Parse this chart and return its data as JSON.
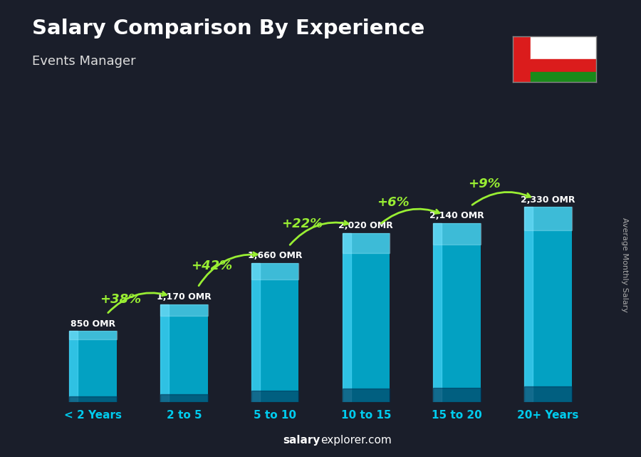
{
  "title": "Salary Comparison By Experience",
  "subtitle": "Events Manager",
  "categories": [
    "< 2 Years",
    "2 to 5",
    "5 to 10",
    "10 to 15",
    "15 to 20",
    "20+ Years"
  ],
  "values": [
    850,
    1170,
    1660,
    2020,
    2140,
    2330
  ],
  "labels": [
    "850 OMR",
    "1,170 OMR",
    "1,660 OMR",
    "2,020 OMR",
    "2,140 OMR",
    "2,330 OMR"
  ],
  "pct_changes": [
    "+38%",
    "+42%",
    "+22%",
    "+6%",
    "+9%"
  ],
  "bar_color": "#00b4d8",
  "bar_edge": "#0096b4",
  "pct_color": "#99ee33",
  "arrow_color": "#99ee33",
  "label_color": "#ffffff",
  "xlabel_color": "#00ccee",
  "title_color": "#ffffff",
  "subtitle_color": "#dddddd",
  "bg_color": "#1a1e2a",
  "ylabel_text": "Average Monthly Salary",
  "footer_bold": "salary",
  "footer_normal": "explorer.com",
  "ylim_max": 3000,
  "bar_width": 0.52
}
